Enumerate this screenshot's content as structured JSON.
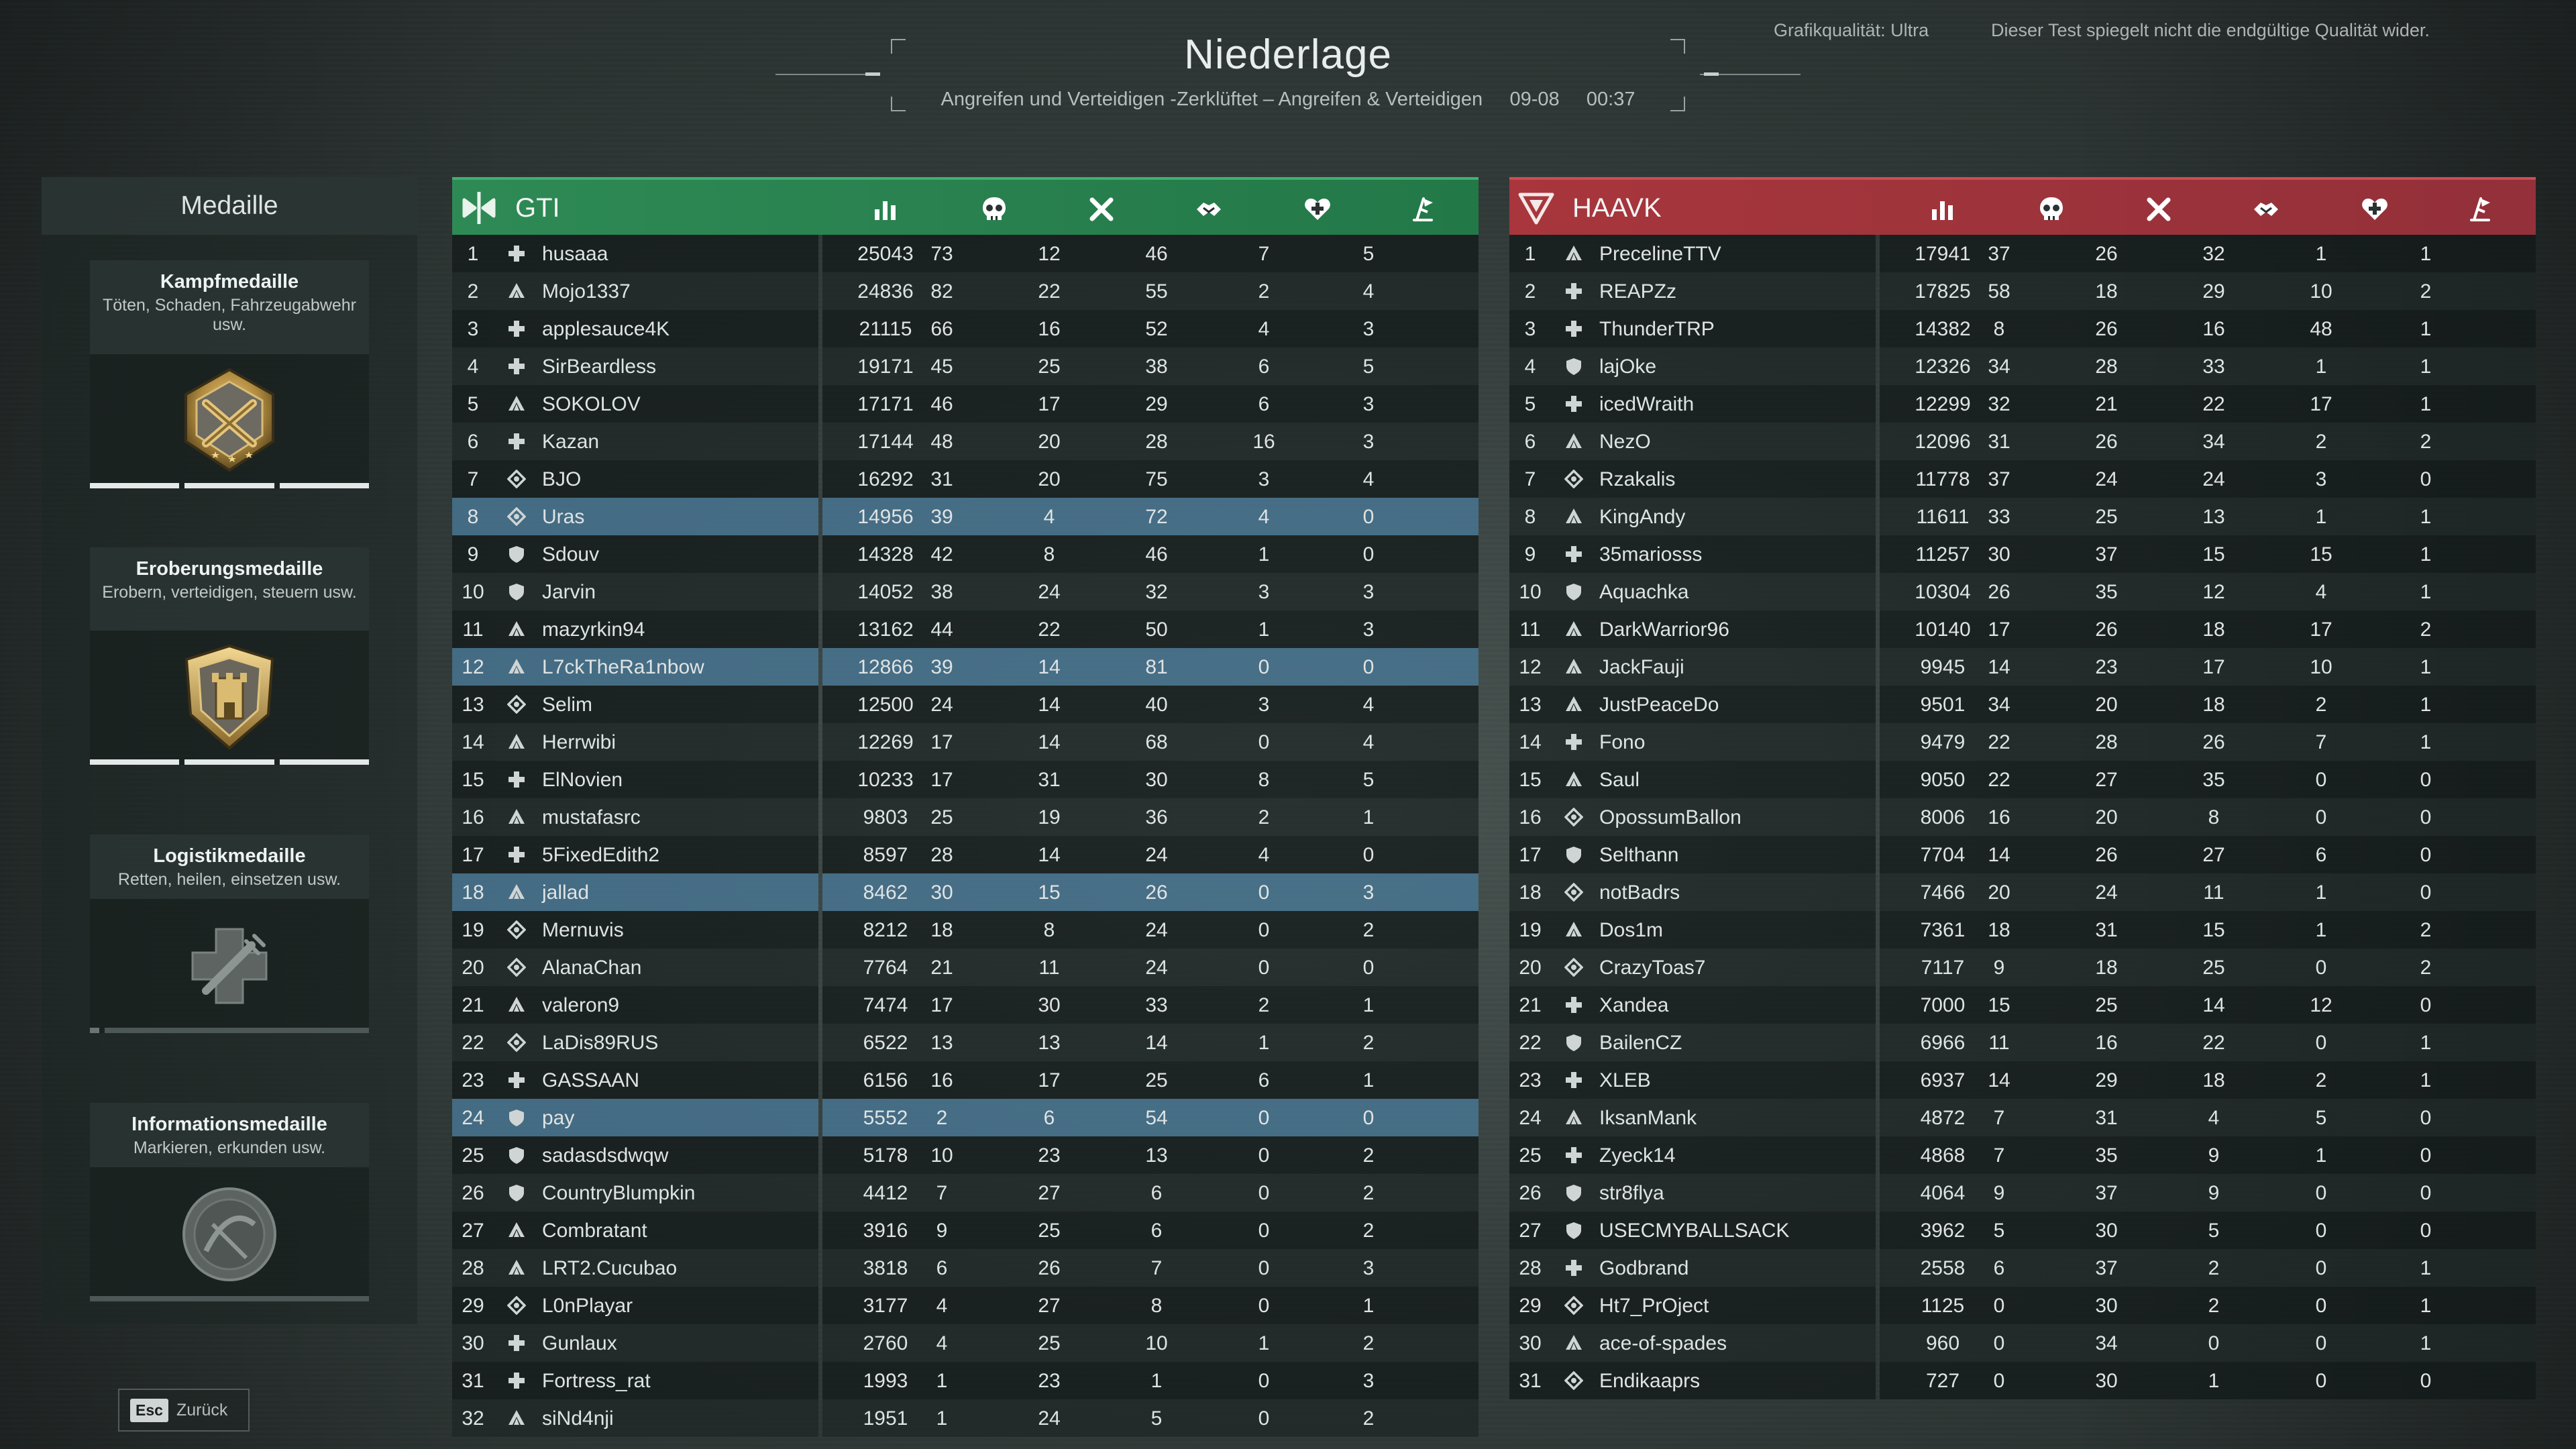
{
  "header": {
    "result_title": "Niederlage",
    "subtitle": "Angreifen und Verteidigen -Zerklüftet – Angreifen & Verteidigen     09-08     00:37",
    "graphics_quality": "Grafikqualität: Ultra",
    "test_notice": "Dieser Test spiegelt nicht die endgültige Qualität wider."
  },
  "medal_panel": {
    "title": "Medaille",
    "medals": [
      {
        "name": "Kampfmedaille",
        "desc": "Töten, Schaden, Fahrzeugabwehr usw.",
        "icon": "combat-medal-icon",
        "progress": 3
      },
      {
        "name": "Eroberungsmedaille",
        "desc": "Erobern, verteidigen, steuern usw.",
        "icon": "conquest-medal-icon",
        "progress": 3
      },
      {
        "name": "Logistikmedaille",
        "desc": "Retten, heilen, einsetzen usw.",
        "icon": "logistics-medal-icon",
        "progress": 0
      },
      {
        "name": "Informationsmedaille",
        "desc": "Markieren, erkunden usw.",
        "icon": "intel-medal-icon",
        "progress": 0
      }
    ]
  },
  "back_button": {
    "key": "Esc",
    "label": "Zurück"
  },
  "columns": [
    "score-icon",
    "kills-icon",
    "deaths-icon",
    "assists-icon",
    "revives-icon",
    "objective-icon"
  ],
  "teams": [
    {
      "name": "GTI",
      "color": "#2e8a55",
      "players": [
        {
          "rank": "1",
          "cls": "medic",
          "name": "husaaa",
          "stats": [
            "25043",
            "73",
            "12",
            "46",
            "7",
            "5"
          ],
          "hl": false
        },
        {
          "rank": "2",
          "cls": "recon",
          "name": "Mojo1337",
          "stats": [
            "24836",
            "82",
            "22",
            "55",
            "2",
            "4"
          ],
          "hl": false
        },
        {
          "rank": "3",
          "cls": "medic",
          "name": "applesauce4K",
          "stats": [
            "21115",
            "66",
            "16",
            "52",
            "4",
            "3"
          ],
          "hl": false
        },
        {
          "rank": "4",
          "cls": "medic",
          "name": "SirBeardless",
          "stats": [
            "19171",
            "45",
            "25",
            "38",
            "6",
            "5"
          ],
          "hl": false
        },
        {
          "rank": "5",
          "cls": "recon",
          "name": "SOKOLOV",
          "stats": [
            "17171",
            "46",
            "17",
            "29",
            "6",
            "3"
          ],
          "hl": false
        },
        {
          "rank": "6",
          "cls": "medic",
          "name": "Kazan",
          "stats": [
            "17144",
            "48",
            "20",
            "28",
            "16",
            "3"
          ],
          "hl": false
        },
        {
          "rank": "7",
          "cls": "engineer",
          "name": "BJO",
          "stats": [
            "16292",
            "31",
            "20",
            "75",
            "3",
            "4"
          ],
          "hl": false
        },
        {
          "rank": "8",
          "cls": "engineer",
          "name": "Uras",
          "stats": [
            "14956",
            "39",
            "4",
            "72",
            "4",
            "0"
          ],
          "hl": true
        },
        {
          "rank": "9",
          "cls": "support",
          "name": "Sdouv",
          "stats": [
            "14328",
            "42",
            "8",
            "46",
            "1",
            "0"
          ],
          "hl": false
        },
        {
          "rank": "10",
          "cls": "support",
          "name": "Jarvin",
          "stats": [
            "14052",
            "38",
            "24",
            "32",
            "3",
            "3"
          ],
          "hl": false
        },
        {
          "rank": "11",
          "cls": "recon",
          "name": "mazyrkin94",
          "stats": [
            "13162",
            "44",
            "22",
            "50",
            "1",
            "3"
          ],
          "hl": false
        },
        {
          "rank": "12",
          "cls": "recon",
          "name": "L7ckTheRa1nbow",
          "stats": [
            "12866",
            "39",
            "14",
            "81",
            "0",
            "0"
          ],
          "hl": true
        },
        {
          "rank": "13",
          "cls": "engineer",
          "name": "Selim",
          "stats": [
            "12500",
            "24",
            "14",
            "40",
            "3",
            "4"
          ],
          "hl": false
        },
        {
          "rank": "14",
          "cls": "recon",
          "name": "Herrwibi",
          "stats": [
            "12269",
            "17",
            "14",
            "68",
            "0",
            "4"
          ],
          "hl": false
        },
        {
          "rank": "15",
          "cls": "medic",
          "name": "ElNovien",
          "stats": [
            "10233",
            "17",
            "31",
            "30",
            "8",
            "5"
          ],
          "hl": false
        },
        {
          "rank": "16",
          "cls": "recon",
          "name": "mustafasrc",
          "stats": [
            "9803",
            "25",
            "19",
            "36",
            "2",
            "1"
          ],
          "hl": false
        },
        {
          "rank": "17",
          "cls": "medic",
          "name": "5FixedEdith2",
          "stats": [
            "8597",
            "28",
            "14",
            "24",
            "4",
            "0"
          ],
          "hl": false
        },
        {
          "rank": "18",
          "cls": "recon",
          "name": "jallad",
          "stats": [
            "8462",
            "30",
            "15",
            "26",
            "0",
            "3"
          ],
          "hl": true
        },
        {
          "rank": "19",
          "cls": "engineer",
          "name": "Mernuvis",
          "stats": [
            "8212",
            "18",
            "8",
            "24",
            "0",
            "2"
          ],
          "hl": false
        },
        {
          "rank": "20",
          "cls": "engineer",
          "name": "AlanaChan",
          "stats": [
            "7764",
            "21",
            "11",
            "24",
            "0",
            "0"
          ],
          "hl": false
        },
        {
          "rank": "21",
          "cls": "recon",
          "name": "valeron9",
          "stats": [
            "7474",
            "17",
            "30",
            "33",
            "2",
            "1"
          ],
          "hl": false
        },
        {
          "rank": "22",
          "cls": "engineer",
          "name": "LaDis89RUS",
          "stats": [
            "6522",
            "13",
            "13",
            "14",
            "1",
            "2"
          ],
          "hl": false
        },
        {
          "rank": "23",
          "cls": "medic",
          "name": "GASSAAN",
          "stats": [
            "6156",
            "16",
            "17",
            "25",
            "6",
            "1"
          ],
          "hl": false
        },
        {
          "rank": "24",
          "cls": "support",
          "name": "pay",
          "stats": [
            "5552",
            "2",
            "6",
            "54",
            "0",
            "0"
          ],
          "hl": true
        },
        {
          "rank": "25",
          "cls": "support",
          "name": "sadasdsdwqw",
          "stats": [
            "5178",
            "10",
            "23",
            "13",
            "0",
            "2"
          ],
          "hl": false
        },
        {
          "rank": "26",
          "cls": "support",
          "name": "CountryBlumpkin",
          "stats": [
            "4412",
            "7",
            "27",
            "6",
            "0",
            "2"
          ],
          "hl": false
        },
        {
          "rank": "27",
          "cls": "recon",
          "name": "Combratant",
          "stats": [
            "3916",
            "9",
            "25",
            "6",
            "0",
            "2"
          ],
          "hl": false
        },
        {
          "rank": "28",
          "cls": "recon",
          "name": "LRT2.Cucubao",
          "stats": [
            "3818",
            "6",
            "26",
            "7",
            "0",
            "3"
          ],
          "hl": false
        },
        {
          "rank": "29",
          "cls": "engineer",
          "name": "L0nPlayar",
          "stats": [
            "3177",
            "4",
            "27",
            "8",
            "0",
            "1"
          ],
          "hl": false
        },
        {
          "rank": "30",
          "cls": "medic",
          "name": "Gunlaux",
          "stats": [
            "2760",
            "4",
            "25",
            "10",
            "1",
            "2"
          ],
          "hl": false
        },
        {
          "rank": "31",
          "cls": "medic",
          "name": "Fortress_rat",
          "stats": [
            "1993",
            "1",
            "23",
            "1",
            "0",
            "3"
          ],
          "hl": false
        },
        {
          "rank": "32",
          "cls": "recon",
          "name": "siNd4nji",
          "stats": [
            "1951",
            "1",
            "24",
            "5",
            "0",
            "2"
          ],
          "hl": false
        }
      ]
    },
    {
      "name": "HAAVK",
      "color": "#a8363c",
      "players": [
        {
          "rank": "1",
          "cls": "recon",
          "name": "PrecelineTTV",
          "stats": [
            "17941",
            "37",
            "26",
            "32",
            "1",
            "1"
          ],
          "hl": false
        },
        {
          "rank": "2",
          "cls": "medic",
          "name": "REAPZz",
          "stats": [
            "17825",
            "58",
            "18",
            "29",
            "10",
            "2"
          ],
          "hl": false
        },
        {
          "rank": "3",
          "cls": "medic",
          "name": "ThunderTRP",
          "stats": [
            "14382",
            "8",
            "26",
            "16",
            "48",
            "1"
          ],
          "hl": false
        },
        {
          "rank": "4",
          "cls": "support",
          "name": "lajOke",
          "stats": [
            "12326",
            "34",
            "28",
            "33",
            "1",
            "1"
          ],
          "hl": false
        },
        {
          "rank": "5",
          "cls": "medic",
          "name": "icedWraith",
          "stats": [
            "12299",
            "32",
            "21",
            "22",
            "17",
            "1"
          ],
          "hl": false
        },
        {
          "rank": "6",
          "cls": "recon",
          "name": "NezO",
          "stats": [
            "12096",
            "31",
            "26",
            "34",
            "2",
            "2"
          ],
          "hl": false
        },
        {
          "rank": "7",
          "cls": "engineer",
          "name": "Rzakalis",
          "stats": [
            "11778",
            "37",
            "24",
            "24",
            "3",
            "0"
          ],
          "hl": false
        },
        {
          "rank": "8",
          "cls": "recon",
          "name": "KingAndy",
          "stats": [
            "11611",
            "33",
            "25",
            "13",
            "1",
            "1"
          ],
          "hl": false
        },
        {
          "rank": "9",
          "cls": "medic",
          "name": "35mariosss",
          "stats": [
            "11257",
            "30",
            "37",
            "15",
            "15",
            "1"
          ],
          "hl": false
        },
        {
          "rank": "10",
          "cls": "support",
          "name": "Aquachka",
          "stats": [
            "10304",
            "26",
            "35",
            "12",
            "4",
            "1"
          ],
          "hl": false
        },
        {
          "rank": "11",
          "cls": "recon",
          "name": "DarkWarrior96",
          "stats": [
            "10140",
            "17",
            "26",
            "18",
            "17",
            "2"
          ],
          "hl": false
        },
        {
          "rank": "12",
          "cls": "recon",
          "name": "JackFauji",
          "stats": [
            "9945",
            "14",
            "23",
            "17",
            "10",
            "1"
          ],
          "hl": false
        },
        {
          "rank": "13",
          "cls": "recon",
          "name": "JustPeaceDo",
          "stats": [
            "9501",
            "34",
            "20",
            "18",
            "2",
            "1"
          ],
          "hl": false
        },
        {
          "rank": "14",
          "cls": "medic",
          "name": "Fono",
          "stats": [
            "9479",
            "22",
            "28",
            "26",
            "7",
            "1"
          ],
          "hl": false
        },
        {
          "rank": "15",
          "cls": "recon",
          "name": "Saul",
          "stats": [
            "9050",
            "22",
            "27",
            "35",
            "0",
            "0"
          ],
          "hl": false
        },
        {
          "rank": "16",
          "cls": "engineer",
          "name": "OpossumBallon",
          "stats": [
            "8006",
            "16",
            "20",
            "8",
            "0",
            "0"
          ],
          "hl": false
        },
        {
          "rank": "17",
          "cls": "support",
          "name": "Selthann",
          "stats": [
            "7704",
            "14",
            "26",
            "27",
            "6",
            "0"
          ],
          "hl": false
        },
        {
          "rank": "18",
          "cls": "engineer",
          "name": "notBadrs",
          "stats": [
            "7466",
            "20",
            "24",
            "11",
            "1",
            "0"
          ],
          "hl": false
        },
        {
          "rank": "19",
          "cls": "recon",
          "name": "Dos1m",
          "stats": [
            "7361",
            "18",
            "31",
            "15",
            "1",
            "2"
          ],
          "hl": false
        },
        {
          "rank": "20",
          "cls": "engineer",
          "name": "CrazyToas7",
          "stats": [
            "7117",
            "9",
            "18",
            "25",
            "0",
            "2"
          ],
          "hl": false
        },
        {
          "rank": "21",
          "cls": "medic",
          "name": "Xandea",
          "stats": [
            "7000",
            "15",
            "25",
            "14",
            "12",
            "0"
          ],
          "hl": false
        },
        {
          "rank": "22",
          "cls": "support",
          "name": "BailenCZ",
          "stats": [
            "6966",
            "11",
            "16",
            "22",
            "0",
            "1"
          ],
          "hl": false
        },
        {
          "rank": "23",
          "cls": "medic",
          "name": "XLEB",
          "stats": [
            "6937",
            "14",
            "29",
            "18",
            "2",
            "1"
          ],
          "hl": false
        },
        {
          "rank": "24",
          "cls": "recon",
          "name": "IksanMank",
          "stats": [
            "4872",
            "7",
            "31",
            "4",
            "5",
            "0"
          ],
          "hl": false
        },
        {
          "rank": "25",
          "cls": "medic",
          "name": "Zyeck14",
          "stats": [
            "4868",
            "7",
            "35",
            "9",
            "1",
            "0"
          ],
          "hl": false
        },
        {
          "rank": "26",
          "cls": "support",
          "name": "str8flya",
          "stats": [
            "4064",
            "9",
            "37",
            "9",
            "0",
            "0"
          ],
          "hl": false
        },
        {
          "rank": "27",
          "cls": "support",
          "name": "USECMYBALLSACK",
          "stats": [
            "3962",
            "5",
            "30",
            "5",
            "0",
            "0"
          ],
          "hl": false
        },
        {
          "rank": "28",
          "cls": "medic",
          "name": "Godbrand",
          "stats": [
            "2558",
            "6",
            "37",
            "2",
            "0",
            "1"
          ],
          "hl": false
        },
        {
          "rank": "29",
          "cls": "engineer",
          "name": "Ht7_PrOject",
          "stats": [
            "1125",
            "0",
            "30",
            "2",
            "0",
            "1"
          ],
          "hl": false
        },
        {
          "rank": "30",
          "cls": "recon",
          "name": "ace-of-spades",
          "stats": [
            "960",
            "0",
            "34",
            "0",
            "0",
            "1"
          ],
          "hl": false
        },
        {
          "rank": "31",
          "cls": "engineer",
          "name": "Endikaaprs",
          "stats": [
            "727",
            "0",
            "30",
            "1",
            "0",
            "0"
          ],
          "hl": false
        }
      ]
    }
  ]
}
